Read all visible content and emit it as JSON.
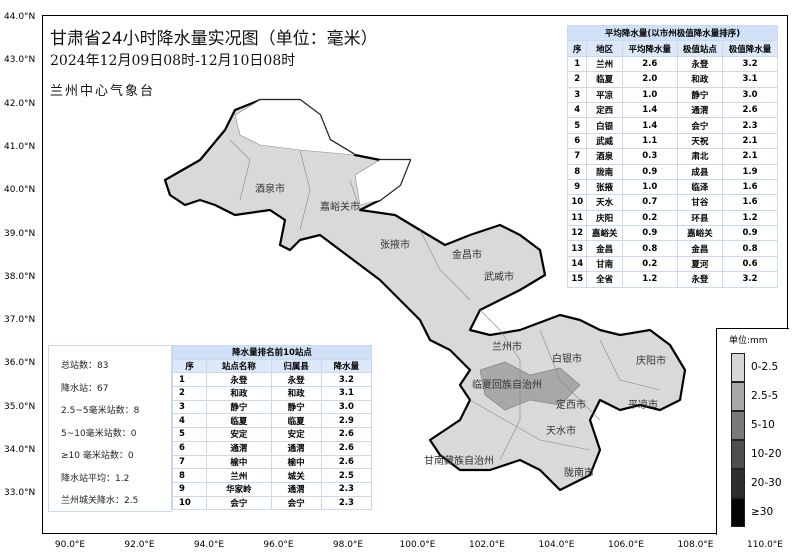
{
  "title": "甘肃省24小时降水量实况图（单位：毫米）",
  "period": "2024年12月09日08时-12月10日08时",
  "org": "兰州中心气象台",
  "lat_labels": [
    "44.0°N",
    "43.0°N",
    "42.0°N",
    "41.0°N",
    "40.0°N",
    "39.0°N",
    "38.0°N",
    "37.0°N",
    "36.0°N",
    "35.0°N",
    "34.0°N",
    "33.0°N"
  ],
  "lon_labels": [
    "90.0°E",
    "92.0°E",
    "94.0°E",
    "96.0°E",
    "98.0°E",
    "100.0°E",
    "102.0°E",
    "104.0°E",
    "106.0°E",
    "108.0°E",
    "110.0°E"
  ],
  "cities": [
    "酒泉市",
    "嘉峪关市",
    "张掖市",
    "金昌市",
    "武威市",
    "兰州市",
    "白银市",
    "庆阳市",
    "临夏回族自治州",
    "定西市",
    "平凉市",
    "天水市",
    "甘南藏族自治州",
    "陇南市"
  ],
  "avg_table": {
    "caption": "平均降水量(以市州极值降水量排序)",
    "headers": [
      "序",
      "地区",
      "平均降水量",
      "极值站点",
      "极值降水量"
    ],
    "rows": [
      [
        "1",
        "兰州",
        "2.6",
        "永登",
        "3.2"
      ],
      [
        "2",
        "临夏",
        "2.0",
        "和政",
        "3.1"
      ],
      [
        "3",
        "平凉",
        "1.0",
        "静宁",
        "3.0"
      ],
      [
        "4",
        "定西",
        "1.4",
        "通渭",
        "2.6"
      ],
      [
        "5",
        "白银",
        "1.4",
        "会宁",
        "2.3"
      ],
      [
        "6",
        "武威",
        "1.1",
        "天祝",
        "2.1"
      ],
      [
        "7",
        "酒泉",
        "0.3",
        "肃北",
        "2.1"
      ],
      [
        "8",
        "陇南",
        "0.9",
        "成县",
        "1.9"
      ],
      [
        "9",
        "张掖",
        "1.0",
        "临泽",
        "1.6"
      ],
      [
        "10",
        "天水",
        "0.7",
        "甘谷",
        "1.6"
      ],
      [
        "11",
        "庆阳",
        "0.2",
        "环县",
        "1.2"
      ],
      [
        "12",
        "嘉峪关",
        "0.9",
        "嘉峪关",
        "0.9"
      ],
      [
        "13",
        "金昌",
        "0.8",
        "金昌",
        "0.8"
      ],
      [
        "14",
        "甘南",
        "0.2",
        "夏河",
        "0.6"
      ],
      [
        "15",
        "全省",
        "1.2",
        "永登",
        "3.2"
      ]
    ]
  },
  "stats": [
    "总站数：83",
    "降水站：67",
    "2.5~5毫米站数：8",
    "5~10毫米站数：0",
    "≥10 毫米站数：0",
    "降水站平均：1.2",
    "兰州城关降水：2.5"
  ],
  "top10": {
    "caption": "降水量排名前10站点",
    "headers": [
      "序",
      "站点名称",
      "归属县",
      "降水量"
    ],
    "rows": [
      [
        "1",
        "永登",
        "永登",
        "3.2"
      ],
      [
        "2",
        "和政",
        "和政",
        "3.1"
      ],
      [
        "3",
        "静宁",
        "静宁",
        "3.0"
      ],
      [
        "4",
        "临夏",
        "临夏",
        "2.9"
      ],
      [
        "5",
        "安定",
        "安定",
        "2.6"
      ],
      [
        "6",
        "通渭",
        "通渭",
        "2.6"
      ],
      [
        "7",
        "榆中",
        "榆中",
        "2.6"
      ],
      [
        "8",
        "兰州",
        "城关",
        "2.5"
      ],
      [
        "9",
        "华家岭",
        "通渭",
        "2.3"
      ],
      [
        "10",
        "会宁",
        "会宁",
        "2.3"
      ]
    ]
  },
  "legend": {
    "unit": "单位:mm",
    "items": [
      {
        "label": "0-2.5",
        "color": "#d6d6d6"
      },
      {
        "label": "2.5-5",
        "color": "#a8a8a8"
      },
      {
        "label": "5-10",
        "color": "#7a7a7a"
      },
      {
        "label": "10-20",
        "color": "#4e4e4e"
      },
      {
        "label": "20-30",
        "color": "#2e2e2e"
      },
      {
        "label": "≥30",
        "color": "#050505"
      }
    ]
  }
}
